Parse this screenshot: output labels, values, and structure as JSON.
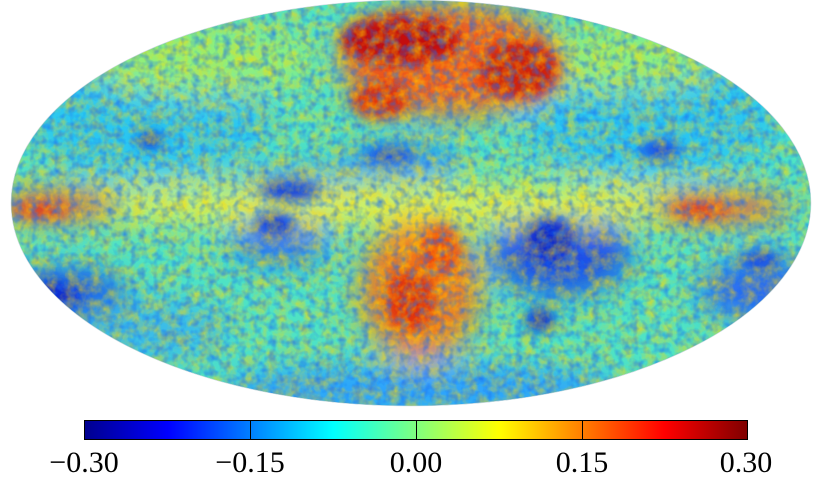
{
  "map": {
    "projection": "mollweide",
    "colormap": "jet",
    "colors": {
      "low": "#00008f",
      "mid_low": "#00a0ff",
      "mid": "#7fff7f",
      "mid_high": "#ffb000",
      "high": "#800000"
    },
    "range": [
      -0.3,
      0.3
    ]
  },
  "colorbar": {
    "ticks": [
      "−0.30",
      "−0.15",
      "0.00",
      "0.15",
      "0.30"
    ],
    "tick_values": [
      -0.3,
      -0.15,
      0.0,
      0.15,
      0.3
    ]
  }
}
